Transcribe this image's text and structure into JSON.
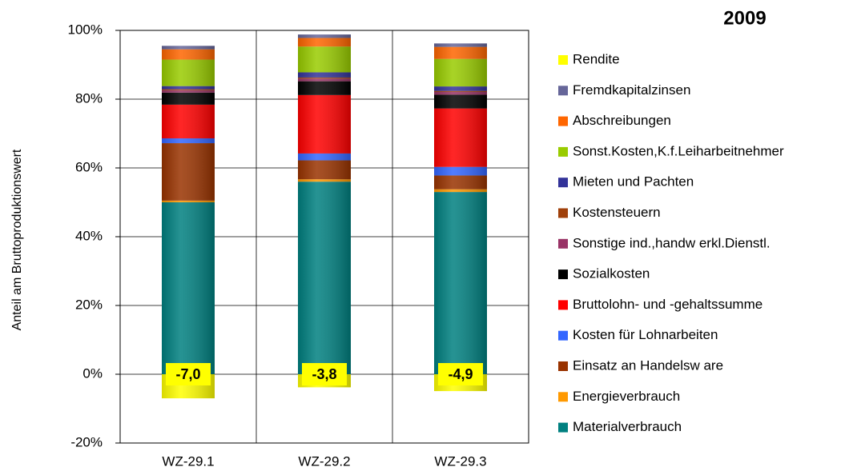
{
  "chart_data": {
    "type": "stacked-bar",
    "title": "2009",
    "y_label": "Anteil am Bruttoproduktionswert",
    "categories": [
      "WZ-29.1",
      "WZ-29.2",
      "WZ-29.3"
    ],
    "ylim": [
      -20,
      100
    ],
    "yticks": [
      {
        "value": -20,
        "label": "-20%"
      },
      {
        "value": 0,
        "label": "0%"
      },
      {
        "value": 20,
        "label": "20%"
      },
      {
        "value": 40,
        "label": "40%"
      },
      {
        "value": 60,
        "label": "60%"
      },
      {
        "value": 80,
        "label": "80%"
      },
      {
        "value": 100,
        "label": "100%"
      }
    ],
    "grid": true,
    "legend": "right",
    "series": [
      {
        "name": "Materialverbrauch",
        "color": "#008080",
        "values": [
          50,
          56,
          53
        ]
      },
      {
        "name": "Energieverbrauch",
        "color": "#ff9900",
        "values": [
          0.5,
          0.7,
          0.8
        ]
      },
      {
        "name": "Einsatz an Handelsw are",
        "color": "#993300",
        "values": [
          16.7,
          5.5,
          4
        ]
      },
      {
        "name": "Kosten für Lohnarbeiten",
        "color": "#3366ff",
        "values": [
          1.4,
          2,
          2.5
        ]
      },
      {
        "name": "Bruttolohn- und -gehaltssumme",
        "color": "#ff0000",
        "values": [
          9.8,
          17,
          17
        ]
      },
      {
        "name": "Sozialkosten",
        "color": "#000000",
        "values": [
          3.5,
          4,
          4
        ]
      },
      {
        "name": "Sonstige ind.,handw erkl.Dienstl.",
        "color": "#993366",
        "values": [
          0.7,
          0.8,
          0.8
        ]
      },
      {
        "name": "Kostensteuern",
        "color": "#a0400a",
        "values": [
          0.3,
          0.3,
          0.3
        ]
      },
      {
        "name": "Mieten und Pachten",
        "color": "#333399",
        "values": [
          0.9,
          1.5,
          1.3
        ]
      },
      {
        "name": "Sonst.Kosten,K.f.Leiharbeitnehmer",
        "color": "#99cc00",
        "values": [
          7.7,
          7.5,
          8
        ]
      },
      {
        "name": "Abschreibungen",
        "color": "#ff6600",
        "values": [
          3,
          2.5,
          3.5
        ]
      },
      {
        "name": "Fremdkapitalzinsen",
        "color": "#666699",
        "values": [
          1,
          1,
          1
        ]
      },
      {
        "name": "Rendite",
        "color": "#ffff00",
        "values": [
          -7.0,
          -3.8,
          -4.9
        ],
        "value_labels": [
          "-7,0",
          "-3,8",
          "-4,9"
        ]
      }
    ]
  }
}
